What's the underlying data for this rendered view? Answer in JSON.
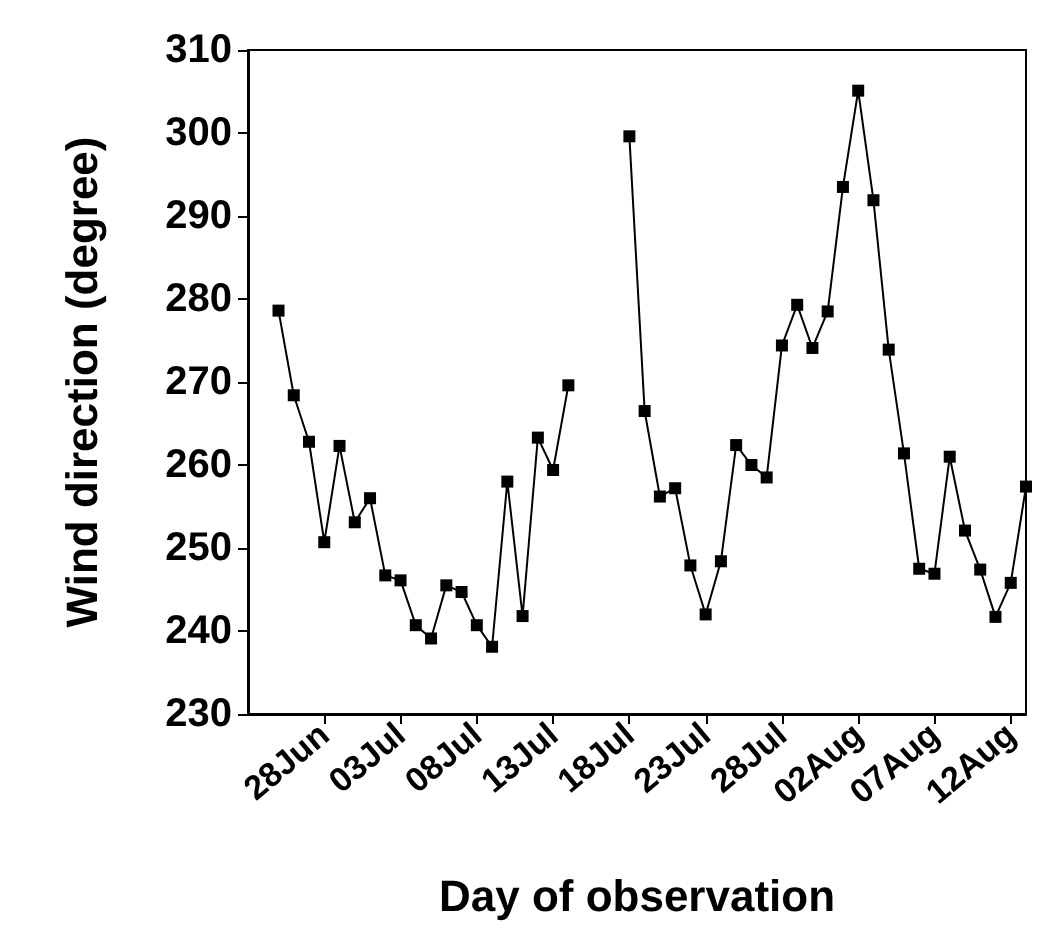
{
  "chart_data": {
    "type": "line",
    "xlabel": "Day of observation",
    "ylabel": "Wind direction (degree)",
    "x": [
      "--06-25",
      "--06-26",
      "--06-27",
      "--06-28",
      "--06-29",
      "--06-30",
      "--07-01",
      "--07-02",
      "--07-03",
      "--07-04",
      "--07-05",
      "--07-06",
      "--07-07",
      "--07-08",
      "--07-09",
      "--07-10",
      "--07-11",
      "--07-12",
      "--07-13",
      "--07-14",
      "--07-15",
      "--07-16",
      "--07-17",
      "--07-18",
      "--07-19",
      "--07-20",
      "--07-21",
      "--07-22",
      "--07-23",
      "--07-24",
      "--07-25",
      "--07-26",
      "--07-27",
      "--07-28",
      "--07-29",
      "--07-30",
      "--07-31",
      "--08-01",
      "--08-02",
      "--08-03",
      "--08-04",
      "--08-05",
      "--08-06",
      "--08-07",
      "--08-08",
      "--08-09",
      "--08-10",
      "--08-11",
      "--08-12",
      "--08-13"
    ],
    "series": [
      {
        "color": "#000000",
        "values": [
          278.6,
          268.4,
          262.8,
          250.7,
          262.3,
          253.1,
          256,
          246.7,
          246.1,
          240.7,
          239.1,
          245.5,
          244.7,
          240.7,
          238.1,
          258,
          241.8,
          263.3,
          259.4,
          269.6,
          null,
          null,
          null,
          299.6,
          266.5,
          256.2,
          257.2,
          247.9,
          242,
          248.4,
          262.4,
          260,
          258.5,
          274.4,
          279.3,
          274.1,
          278.5,
          293.5,
          305.1,
          291.9,
          273.9,
          261.4,
          247.5,
          246.9,
          261,
          252.1,
          247.4,
          241.7,
          245.8,
          257.4
        ]
      }
    ],
    "xlim": [
      "--06-23",
      "--08-13"
    ],
    "xticks": [
      {
        "value": "--06-28",
        "label": "28Jun"
      },
      {
        "value": "--07-03",
        "label": "03Jul"
      },
      {
        "value": "--07-08",
        "label": "08Jul"
      },
      {
        "value": "--07-13",
        "label": "13Jul"
      },
      {
        "value": "--07-18",
        "label": "18Jul"
      },
      {
        "value": "--07-23",
        "label": "23Jul"
      },
      {
        "value": "--07-28",
        "label": "28Jul"
      },
      {
        "value": "--08-02",
        "label": "02Aug"
      },
      {
        "value": "--08-07",
        "label": "07Aug"
      },
      {
        "value": "--08-12",
        "label": "12Aug"
      }
    ],
    "ylim": [
      230,
      310
    ],
    "yticks": [
      230,
      240,
      250,
      260,
      270,
      280,
      290,
      300,
      310
    ],
    "grid": false,
    "marker": "square",
    "line_style": "solid"
  }
}
